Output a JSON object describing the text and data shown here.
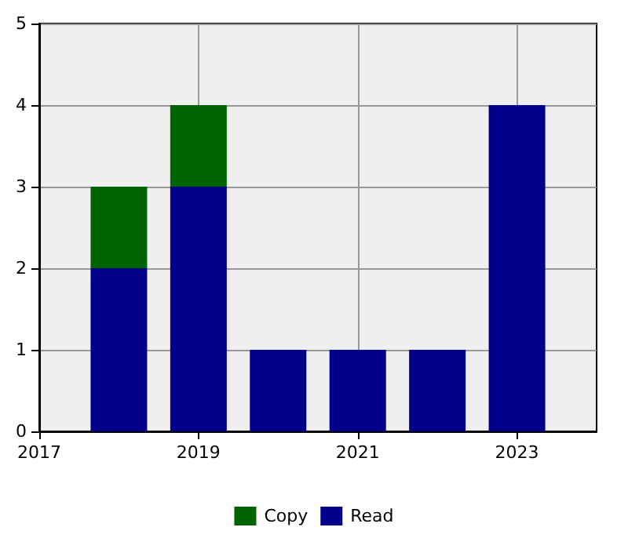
{
  "chart_data": {
    "type": "bar",
    "stacked": true,
    "x": [
      2018,
      2019,
      2020,
      2021,
      2022,
      2023
    ],
    "series": [
      {
        "name": "Read",
        "color": "#00008b",
        "values": [
          2,
          3,
          1,
          1,
          1,
          4
        ]
      },
      {
        "name": "Copy",
        "color": "#006400",
        "values": [
          1,
          1,
          0,
          0,
          0,
          0
        ]
      }
    ],
    "xlim": [
      2017,
      2024
    ],
    "xticks": [
      {
        "value": 2017,
        "label": "2017"
      },
      {
        "value": 2019,
        "label": "2019"
      },
      {
        "value": 2021,
        "label": "2021"
      },
      {
        "value": 2023,
        "label": "2023"
      }
    ],
    "ylim": [
      0,
      5
    ],
    "yticks": [
      0,
      1,
      2,
      3,
      4,
      5
    ],
    "grid": true,
    "legend": "bottom"
  }
}
